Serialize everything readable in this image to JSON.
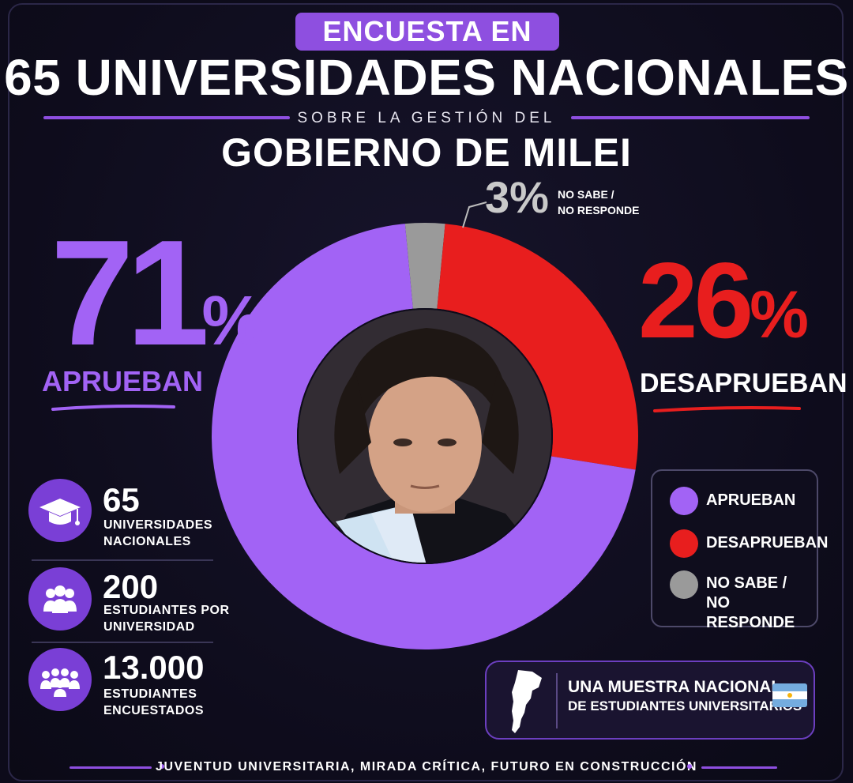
{
  "header": {
    "banner": "ENCUESTA EN",
    "title": "65 UNIVERSIDADES NACIONALES",
    "subtitle": "SOBRE LA GESTIÓN DEL",
    "gov_title": "GOBIERNO DE MILEI"
  },
  "results": {
    "approve_pct": "71",
    "approve_label": "APRUEBAN",
    "disapprove_pct": "26",
    "disapprove_label": "DESAPRUEBAN",
    "nsnr_pct": "3%",
    "nsnr_label_1": "NO SABE /",
    "nsnr_label_2": "NO RESPONDE",
    "percent_sign": "%"
  },
  "chart_data": {
    "type": "pie",
    "categories": [
      "APRUEBAN",
      "DESAPRUEBAN",
      "NO SABE / NO RESPONDE"
    ],
    "values": [
      71,
      26,
      3
    ],
    "colors": [
      "#a263f5",
      "#e81e1e",
      "#9a9a9a"
    ],
    "legend": "right"
  },
  "stats": [
    {
      "number": "65",
      "line1": "UNIVERSIDADES",
      "line2": "NACIONALES",
      "icon": "graduation-cap-icon"
    },
    {
      "number": "200",
      "line1": "ESTUDIANTES POR",
      "line2": "UNIVERSIDAD",
      "icon": "group-icon"
    },
    {
      "number": "13.000",
      "line1": "ESTUDIANTES",
      "line2": "ENCUESTADOS",
      "icon": "crowd-icon"
    }
  ],
  "legend": {
    "approve": "APRUEBAN",
    "disapprove": "DESAPRUEBAN",
    "nsnr_1": "NO SABE /",
    "nsnr_2": "NO RESPONDE"
  },
  "sample": {
    "line1": "UNA MUESTRA NACIONAL",
    "line2": "DE ESTUDIANTES UNIVERSITARIOS",
    "icons": [
      "argentina-map-icon",
      "argentina-flag-icon"
    ]
  },
  "footer": "JUVENTUD UNIVERSITARIA, MIRADA CRÍTICA, FUTURO EN CONSTRUCCIÓN",
  "colors": {
    "purple": "#a263f5",
    "red": "#e81e1e",
    "gray": "#9a9a9a",
    "background": "#0d0b1a"
  }
}
